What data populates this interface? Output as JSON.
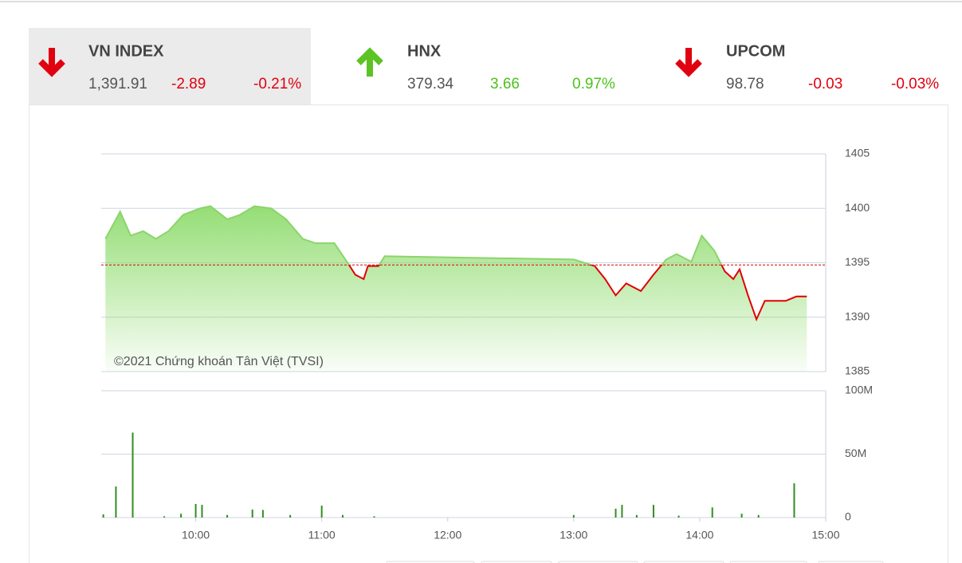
{
  "indices": [
    {
      "name": "VN INDEX",
      "value": "1,391.91",
      "change": "-2.89",
      "percent": "-0.21%"
    },
    {
      "name": "HNX",
      "value": "379.34",
      "change": "3.66",
      "percent": "0.97%"
    },
    {
      "name": "UPCOM",
      "value": "98.78",
      "change": "-0.03",
      "percent": "-0.03%"
    }
  ],
  "chart_data": [
    {
      "type": "line",
      "annotation": "©2021 Chứng khoán Tân Việt (TVSI)",
      "x": [
        "09:17",
        "09:24",
        "09:29",
        "09:35",
        "09:41",
        "09:47",
        "09:54",
        "10:02",
        "10:07",
        "10:15",
        "10:21",
        "10:28",
        "10:36",
        "10:43",
        "10:51",
        "10:57",
        "11:06",
        "11:13",
        "11:16",
        "11:20",
        "11:22",
        "11:27",
        "11:30",
        "13:00",
        "13:10",
        "13:15",
        "13:20",
        "13:25",
        "13:32",
        "13:38",
        "13:44",
        "13:49",
        "13:56",
        "14:01",
        "14:07",
        "14:12",
        "14:16",
        "14:19",
        "14:23",
        "14:27",
        "14:31",
        "14:41",
        "14:46",
        "14:51"
      ],
      "values": [
        1397.2,
        1399.7,
        1397.5,
        1397.9,
        1397.2,
        1397.9,
        1399.4,
        1400.0,
        1400.2,
        1399.0,
        1399.4,
        1400.2,
        1400.0,
        1399.0,
        1397.2,
        1396.8,
        1396.8,
        1394.8,
        1393.9,
        1393.5,
        1394.7,
        1394.7,
        1395.6,
        1395.3,
        1394.7,
        1393.5,
        1392.0,
        1393.1,
        1392.4,
        1393.9,
        1395.3,
        1395.8,
        1395.1,
        1397.5,
        1396.1,
        1394.2,
        1393.5,
        1394.4,
        1392.0,
        1389.8,
        1391.5,
        1391.5,
        1391.9,
        1391.9
      ],
      "reference_value": 1394.8,
      "color_above": "#8cd46c",
      "color_below": "#e00000",
      "fill_color": "#8fdc6e",
      "xlim": [
        "09:15",
        "15:00"
      ],
      "ylim": [
        1385,
        1405
      ],
      "yticks": [
        1385,
        1390,
        1395,
        1400,
        1405
      ],
      "grid": true
    },
    {
      "type": "bar",
      "x": [
        "09:16",
        "09:22",
        "09:30",
        "09:45",
        "09:53",
        "10:00",
        "10:03",
        "10:15",
        "10:27",
        "10:32",
        "10:45",
        "11:00",
        "11:10",
        "11:25",
        "13:00",
        "13:20",
        "13:23",
        "13:30",
        "13:38",
        "13:50",
        "14:06",
        "14:20",
        "14:28",
        "14:45"
      ],
      "values": [
        2500000,
        24500000,
        67000000,
        1000000,
        3000000,
        10700000,
        10000000,
        2000000,
        6300000,
        6000000,
        2000000,
        9400000,
        2000000,
        1000000,
        2000000,
        7000000,
        10000000,
        2000000,
        10000000,
        1500000,
        8000000,
        3000000,
        2000000,
        27000000
      ],
      "color": "#2f8f1f",
      "xlim": [
        "09:15",
        "15:00"
      ],
      "xticks": [
        "10:00",
        "11:00",
        "12:00",
        "13:00",
        "14:00",
        "15:00"
      ],
      "ylim": [
        0,
        100000000
      ],
      "yticks": [
        {
          "value": 0,
          "label": "0"
        },
        {
          "value": 50000000,
          "label": "50M"
        },
        {
          "value": 100000000,
          "label": "100M"
        }
      ],
      "grid": true
    }
  ]
}
